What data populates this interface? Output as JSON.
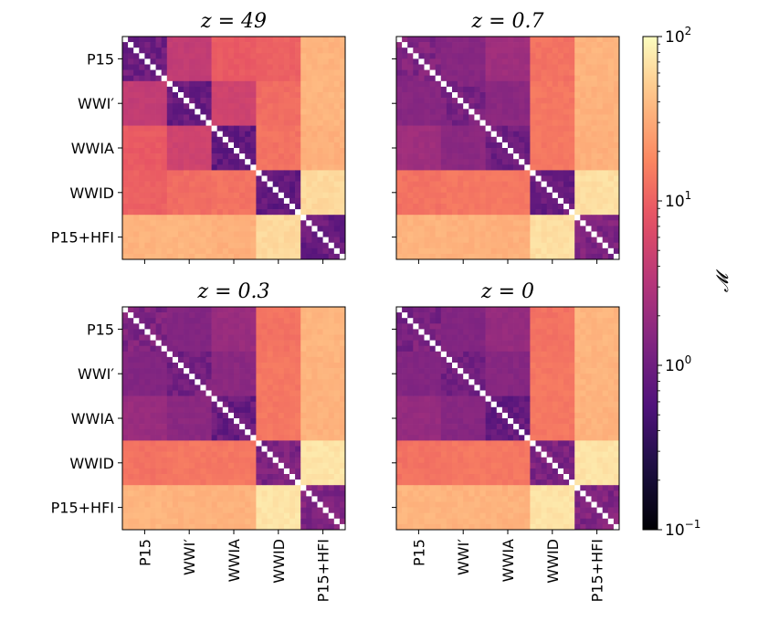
{
  "chart_data": {
    "type": "heatmap",
    "colormap": "magma",
    "scale": "log",
    "categories": [
      "P15",
      "WWI′",
      "WWIA",
      "WWID",
      "P15+HFI"
    ],
    "block_size": 8,
    "colorbar": {
      "label": "𝓜",
      "range": [
        0.1,
        100
      ],
      "ticks": [
        {
          "value": 0.1,
          "base": "10",
          "exp": "−1"
        },
        {
          "value": 1,
          "base": "10",
          "exp": "0"
        },
        {
          "value": 10,
          "base": "10",
          "exp": "1"
        },
        {
          "value": 100,
          "base": "10",
          "exp": "2"
        }
      ]
    },
    "panels": [
      {
        "title": "z = 49",
        "block_matrix": [
          [
            1.0,
            4.0,
            9.0,
            10.0,
            35
          ],
          [
            4.0,
            0.9,
            5.0,
            12.0,
            36
          ],
          [
            9.0,
            5.0,
            0.8,
            13.0,
            33
          ],
          [
            10.0,
            12.0,
            13.0,
            0.8,
            60
          ],
          [
            35,
            36,
            33,
            60,
            0.9
          ]
        ]
      },
      {
        "title": "z = 0.7",
        "block_matrix": [
          [
            1.3,
            1.5,
            2.2,
            13,
            35
          ],
          [
            1.5,
            1.2,
            1.6,
            14,
            34
          ],
          [
            2.2,
            1.6,
            1.0,
            14,
            33
          ],
          [
            13,
            14,
            14,
            0.9,
            65
          ],
          [
            35,
            34,
            33,
            65,
            1.3
          ]
        ]
      },
      {
        "title": "z = 0.3",
        "block_matrix": [
          [
            1.3,
            1.4,
            2.0,
            13,
            36
          ],
          [
            1.4,
            1.1,
            1.6,
            14,
            35
          ],
          [
            2.0,
            1.6,
            0.9,
            14,
            34
          ],
          [
            13,
            14,
            14,
            1.2,
            70
          ],
          [
            36,
            35,
            34,
            70,
            1.3
          ]
        ]
      },
      {
        "title": "z = 0",
        "block_matrix": [
          [
            1.2,
            1.4,
            1.9,
            13,
            36
          ],
          [
            1.4,
            1.1,
            1.5,
            14,
            35
          ],
          [
            1.9,
            1.5,
            0.9,
            14,
            34
          ],
          [
            13,
            14,
            14,
            1.2,
            70
          ],
          [
            36,
            35,
            34,
            70,
            1.3
          ]
        ]
      }
    ]
  }
}
